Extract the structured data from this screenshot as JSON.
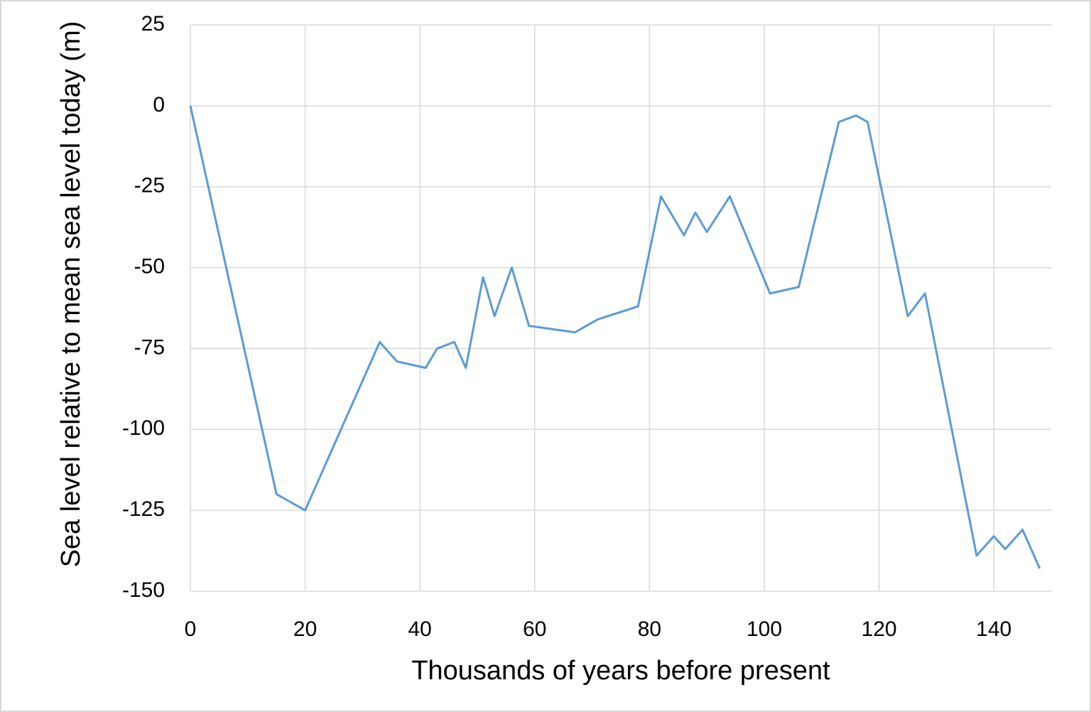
{
  "chart_data": {
    "type": "line",
    "x_label": "Thousands of years before present",
    "y_label": "Sea level relative to mean sea level today (m)",
    "x": [
      0,
      15,
      20,
      33,
      36,
      41,
      43,
      46,
      48,
      51,
      53,
      56,
      59,
      67,
      71,
      78,
      82,
      86,
      88,
      90,
      94,
      101,
      106,
      113,
      116,
      118,
      125,
      128,
      137,
      140,
      142,
      145,
      148
    ],
    "series": [
      {
        "color": "#5b9bd5",
        "values": [
          0,
          -120,
          -125,
          -73,
          -79,
          -81,
          -75,
          -73,
          -81,
          -53,
          -65,
          -50,
          -68,
          -70,
          -66,
          -62,
          -28,
          -40,
          -33,
          -39,
          -28,
          -58,
          -56,
          -5,
          -3,
          -5,
          -65,
          -58,
          -139,
          -133,
          -137,
          -131,
          -143
        ]
      }
    ],
    "xlim": [
      0,
      150
    ],
    "xticks": [
      0,
      20,
      40,
      60,
      80,
      100,
      120,
      140
    ],
    "ylim": [
      -150,
      25
    ],
    "yticks": [
      25,
      0,
      -25,
      -50,
      -75,
      -100,
      -125,
      -150
    ],
    "grid": true
  }
}
